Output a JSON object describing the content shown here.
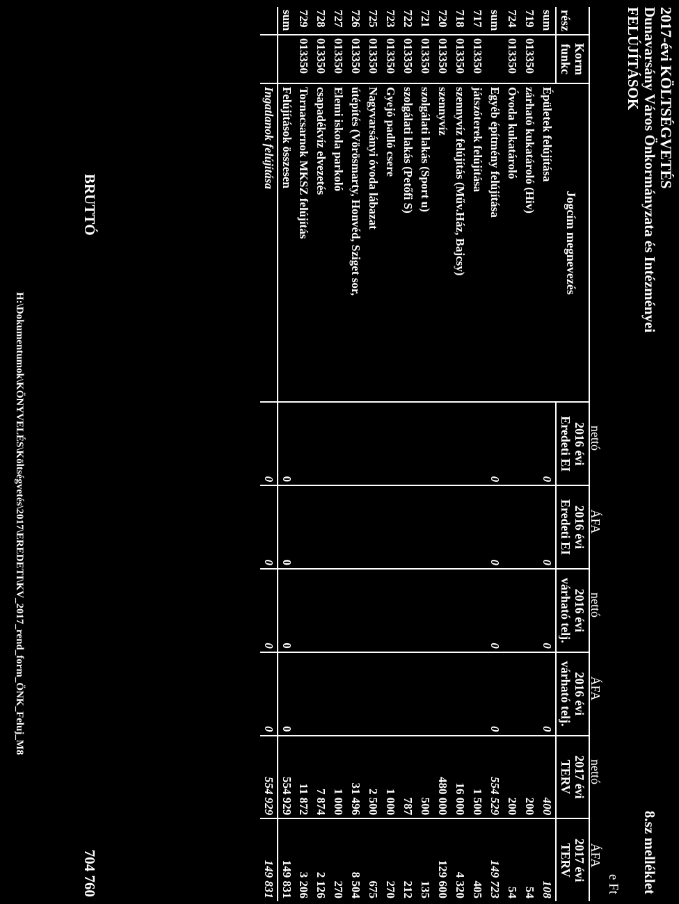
{
  "header": {
    "line1": "2017-évi KÖLTSÉGVETÉS",
    "line2": "Dunavarsány Város Önkormányzata és Intézményei",
    "line3": "FELÚJÍTÁSOK",
    "annex": "8.sz melléklet",
    "unit": "e Ft"
  },
  "table": {
    "top_labels": [
      "nettó",
      "ÁFA",
      "nettó",
      "ÁFA",
      "nettó",
      "ÁFA"
    ],
    "columns": {
      "resz_1": "rész",
      "korm_1": "Korm",
      "korm_2": "funkc",
      "name": "Jogcím megnevezés",
      "c1_1": "2016 évi",
      "c1_2": "Eredeti EI",
      "c2_1": "2016 évi",
      "c2_2": "Eredeti EI",
      "c3_1": "2016 évi",
      "c3_2": "várható telj.",
      "c4_1": "2016 évi",
      "c4_2": "várható telj.",
      "c5_1": "2017 évi",
      "c5_2": "TERV",
      "c6_1": "2017 évi",
      "c6_2": "TERV"
    },
    "rows": [
      {
        "resz": "sum",
        "korm": "",
        "name": "Épületek felújítása",
        "v1": "0",
        "v2": "0",
        "v3": "0",
        "v4": "0",
        "v5": "400",
        "v6": "108"
      },
      {
        "resz": "719",
        "korm": "013350",
        "name": "zárható kukatároló (Hiv)",
        "v1": "",
        "v2": "",
        "v3": "",
        "v4": "",
        "v5": "200",
        "v6": "54"
      },
      {
        "resz": "724",
        "korm": "013350",
        "name": "Óvoda kukatároló",
        "v1": "",
        "v2": "",
        "v3": "",
        "v4": "",
        "v5": "200",
        "v6": "54"
      },
      {
        "resz": "sum",
        "korm": "",
        "name": "Egyéb építmény felújítása",
        "v1": "0",
        "v2": "0",
        "v3": "0",
        "v4": "0",
        "v5": "554 529",
        "v6": "149 723"
      },
      {
        "resz": "717",
        "korm": "013350",
        "name": "játszóterek felújítása",
        "v1": "",
        "v2": "",
        "v3": "",
        "v4": "",
        "v5": "1 500",
        "v6": "405"
      },
      {
        "resz": "718",
        "korm": "013350",
        "name": "szennyvíz felújítás (Műv.Ház, Bajcsy)",
        "v1": "",
        "v2": "",
        "v3": "",
        "v4": "",
        "v5": "16 000",
        "v6": "4 320"
      },
      {
        "resz": "720",
        "korm": "013350",
        "name": "szennyvíz",
        "v1": "",
        "v2": "",
        "v3": "",
        "v4": "",
        "v5": "480 000",
        "v6": "129 600"
      },
      {
        "resz": "721",
        "korm": "013350",
        "name": "szolgálati lakás (Sport u)",
        "v1": "",
        "v2": "",
        "v3": "",
        "v4": "",
        "v5": "500",
        "v6": "135"
      },
      {
        "resz": "722",
        "korm": "013350",
        "name": "szolgálati lakás (Petőfi S)",
        "v1": "",
        "v2": "",
        "v3": "",
        "v4": "",
        "v5": "787",
        "v6": "212"
      },
      {
        "resz": "723",
        "korm": "013350",
        "name": "Gyejó padló csere",
        "v1": "",
        "v2": "",
        "v3": "",
        "v4": "",
        "v5": "1 000",
        "v6": "270"
      },
      {
        "resz": "725",
        "korm": "013350",
        "name": "Nagyvarsányi óvoda lábazat",
        "v1": "",
        "v2": "",
        "v3": "",
        "v4": "",
        "v5": "2 500",
        "v6": "675"
      },
      {
        "resz": "726",
        "korm": "013350",
        "name": "útépítés (Vörösmarty, Honvéd, Sziget sor,",
        "v1": "",
        "v2": "",
        "v3": "",
        "v4": "",
        "v5": "31 496",
        "v6": "8 504"
      },
      {
        "resz": "727",
        "korm": "013350",
        "name": "Elemi iskola parkoló",
        "v1": "",
        "v2": "",
        "v3": "",
        "v4": "",
        "v5": "1 000",
        "v6": "270"
      },
      {
        "resz": "728",
        "korm": "013350",
        "name": "csapadékvíz elvezetés",
        "v1": "",
        "v2": "",
        "v3": "",
        "v4": "",
        "v5": "7 874",
        "v6": "2 126"
      },
      {
        "resz": "729",
        "korm": "013350",
        "name": "Tornacsarnok MKSZ felújítás",
        "v1": "",
        "v2": "",
        "v3": "",
        "v4": "",
        "v5": "11 872",
        "v6": "3 206"
      },
      {
        "resz": "sum",
        "korm": "",
        "name": "Felújítások összesen",
        "v1": "0",
        "v2": "0",
        "v3": "0",
        "v4": "0",
        "v5": "554 929",
        "v6": "149 831"
      }
    ],
    "grand": {
      "name": "Ingatlanok felújítása",
      "v1": "0",
      "v2": "0",
      "v3": "0",
      "v4": "0",
      "v5": "554 929",
      "v6": "149 831"
    }
  },
  "brutto": {
    "label": "BRUTTÓ",
    "value": "704 760"
  },
  "footer_path": "H:\\Dokumentumok\\KÖNYVELÉS\\Költségvetés\\2017\\EREDETI\\KV_2017_rend_form_ÖNK_Feluj_M8"
}
